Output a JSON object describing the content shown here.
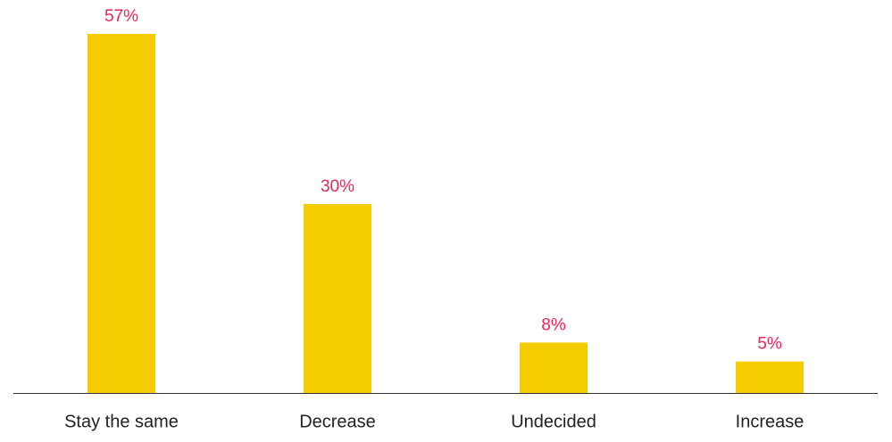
{
  "chart_data": {
    "type": "bar",
    "categories": [
      "Stay the same",
      "Decrease",
      "Undecided",
      "Increase"
    ],
    "values": [
      57,
      30,
      8,
      5
    ],
    "value_labels": [
      "57%",
      "30%",
      "8%",
      "5%"
    ],
    "color": "#f5cc00"
  }
}
